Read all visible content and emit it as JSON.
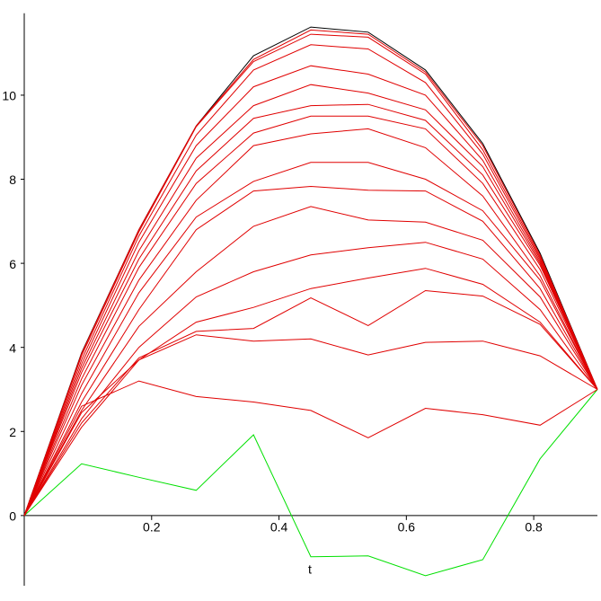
{
  "chart_data": {
    "type": "line",
    "x_label": "t",
    "x": [
      0,
      0.09,
      0.18,
      0.27,
      0.36,
      0.45,
      0.54,
      0.63,
      0.72,
      0.81,
      0.9
    ],
    "xlim": [
      0,
      0.9
    ],
    "ylim": [
      -1.67,
      11.95
    ],
    "xticks": [
      0.2,
      0.4,
      0.6,
      0.8
    ],
    "yticks": [
      0,
      2,
      4,
      6,
      8,
      10
    ],
    "series": [
      {
        "color": "#00e000",
        "values": [
          0,
          1.23,
          0.91,
          0.6,
          1.92,
          -0.98,
          -0.96,
          -1.43,
          -1.05,
          1.35,
          3.0
        ]
      },
      {
        "color": "#000000",
        "values": [
          0,
          3.87,
          6.8,
          9.27,
          10.94,
          11.62,
          11.5,
          10.6,
          8.85,
          6.24,
          3.0
        ]
      },
      {
        "color": "#e00000",
        "values": [
          0,
          2.6,
          3.2,
          2.83,
          2.7,
          2.5,
          1.85,
          2.55,
          2.4,
          2.15,
          3.0
        ]
      },
      {
        "color": "#e00000",
        "values": [
          0,
          2.45,
          3.7,
          4.3,
          4.15,
          4.2,
          3.82,
          4.12,
          4.15,
          3.8,
          3.0
        ]
      },
      {
        "color": "#e00000",
        "values": [
          0,
          2.2,
          3.75,
          4.38,
          4.45,
          5.18,
          4.52,
          5.35,
          5.22,
          4.55,
          3.0
        ]
      },
      {
        "color": "#e00000",
        "values": [
          0,
          2.1,
          3.7,
          4.6,
          4.95,
          5.4,
          5.65,
          5.88,
          5.5,
          4.6,
          3.0
        ]
      },
      {
        "color": "#e00000",
        "values": [
          0,
          2.3,
          4.0,
          5.2,
          5.8,
          6.2,
          6.37,
          6.5,
          6.1,
          4.9,
          3.0
        ]
      },
      {
        "color": "#e00000",
        "values": [
          0,
          2.5,
          4.5,
          5.8,
          6.88,
          7.35,
          7.03,
          6.98,
          6.55,
          5.2,
          3.0
        ]
      },
      {
        "color": "#e00000",
        "values": [
          0,
          2.7,
          4.9,
          6.8,
          7.72,
          7.83,
          7.74,
          7.72,
          7.0,
          5.4,
          3.0
        ]
      },
      {
        "color": "#e00000",
        "values": [
          0,
          2.9,
          5.3,
          7.1,
          7.95,
          8.4,
          8.4,
          8.0,
          7.25,
          5.6,
          3.0
        ]
      },
      {
        "color": "#e00000",
        "values": [
          0,
          3.1,
          5.6,
          7.5,
          8.8,
          9.08,
          9.2,
          8.75,
          7.6,
          5.7,
          3.0
        ]
      },
      {
        "color": "#e00000",
        "values": [
          0,
          3.25,
          5.9,
          7.9,
          9.1,
          9.5,
          9.5,
          9.2,
          7.9,
          5.85,
          3.0
        ]
      },
      {
        "color": "#e00000",
        "values": [
          0,
          3.4,
          6.1,
          8.2,
          9.45,
          9.75,
          9.78,
          9.4,
          8.1,
          5.95,
          3.0
        ]
      },
      {
        "color": "#e00000",
        "values": [
          0,
          3.5,
          6.3,
          8.5,
          9.75,
          10.25,
          10.05,
          9.65,
          8.3,
          6.0,
          3.0
        ]
      },
      {
        "color": "#e00000",
        "values": [
          0,
          3.6,
          6.5,
          8.8,
          10.2,
          10.7,
          10.5,
          10.0,
          8.45,
          6.05,
          3.0
        ]
      },
      {
        "color": "#e00000",
        "values": [
          0,
          3.7,
          6.65,
          9.05,
          10.6,
          11.2,
          11.1,
          10.3,
          8.6,
          6.1,
          3.0
        ]
      },
      {
        "color": "#e00000",
        "values": [
          0,
          3.8,
          6.75,
          9.25,
          10.8,
          11.45,
          11.38,
          10.5,
          8.7,
          6.15,
          3.0
        ]
      },
      {
        "color": "#e00000",
        "values": [
          0,
          3.85,
          6.8,
          9.27,
          10.85,
          11.55,
          11.45,
          10.55,
          8.8,
          6.2,
          3.0
        ]
      }
    ]
  }
}
